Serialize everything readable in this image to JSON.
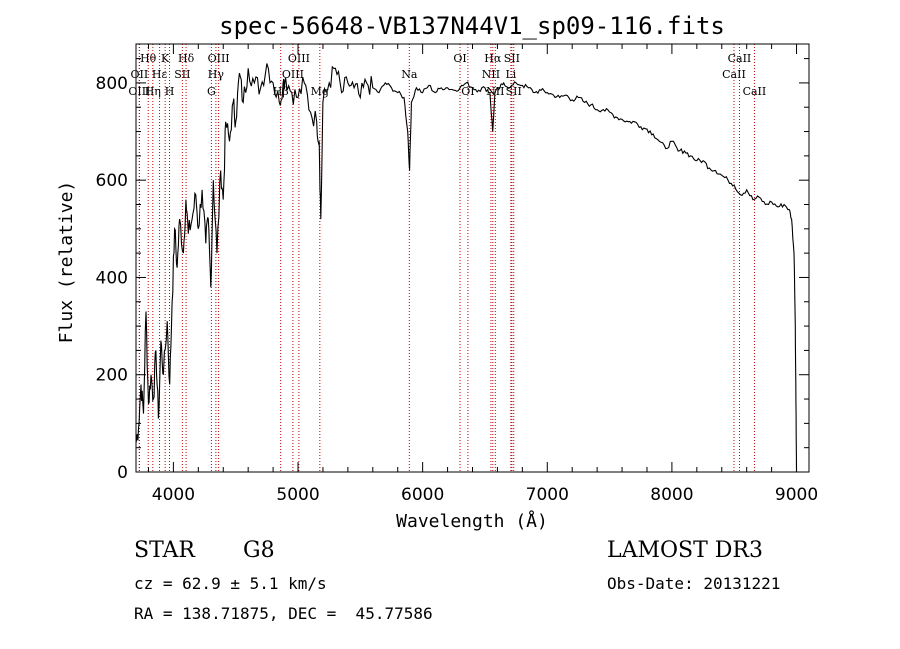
{
  "chart_data": {
    "type": "line",
    "title": "spec-56648-VB137N44V1_sp09-116.fits",
    "xlabel": "Wavelength (Å)",
    "ylabel": "Flux (relative)",
    "xlim": [
      3700,
      9100
    ],
    "ylim": [
      0,
      880
    ],
    "xticks": [
      4000,
      5000,
      6000,
      7000,
      8000,
      9000
    ],
    "yticks": [
      0,
      200,
      400,
      600,
      800
    ],
    "series": [
      {
        "name": "flux",
        "points": [
          [
            3700,
            60
          ],
          [
            3720,
            90
          ],
          [
            3740,
            180
          ],
          [
            3760,
            120
          ],
          [
            3780,
            330
          ],
          [
            3800,
            140
          ],
          [
            3820,
            200
          ],
          [
            3840,
            150
          ],
          [
            3860,
            250
          ],
          [
            3880,
            110
          ],
          [
            3900,
            270
          ],
          [
            3920,
            200
          ],
          [
            3950,
            310
          ],
          [
            3970,
            180
          ],
          [
            3990,
            350
          ],
          [
            4010,
            500
          ],
          [
            4030,
            420
          ],
          [
            4050,
            520
          ],
          [
            4080,
            450
          ],
          [
            4100,
            560
          ],
          [
            4120,
            490
          ],
          [
            4150,
            520
          ],
          [
            4180,
            570
          ],
          [
            4200,
            500
          ],
          [
            4230,
            580
          ],
          [
            4260,
            470
          ],
          [
            4280,
            520
          ],
          [
            4300,
            380
          ],
          [
            4320,
            600
          ],
          [
            4350,
            450
          ],
          [
            4380,
            620
          ],
          [
            4400,
            560
          ],
          [
            4420,
            720
          ],
          [
            4450,
            680
          ],
          [
            4480,
            760
          ],
          [
            4500,
            720
          ],
          [
            4530,
            820
          ],
          [
            4560,
            760
          ],
          [
            4600,
            830
          ],
          [
            4650,
            800
          ],
          [
            4700,
            790
          ],
          [
            4750,
            840
          ],
          [
            4800,
            800
          ],
          [
            4850,
            760
          ],
          [
            4880,
            800
          ],
          [
            4900,
            810
          ],
          [
            4950,
            780
          ],
          [
            5000,
            770
          ],
          [
            5050,
            800
          ],
          [
            5100,
            740
          ],
          [
            5150,
            720
          ],
          [
            5170,
            680
          ],
          [
            5183,
            520
          ],
          [
            5200,
            760
          ],
          [
            5250,
            800
          ],
          [
            5300,
            830
          ],
          [
            5350,
            780
          ],
          [
            5400,
            800
          ],
          [
            5450,
            790
          ],
          [
            5500,
            770
          ],
          [
            5550,
            800
          ],
          [
            5600,
            790
          ],
          [
            5650,
            780
          ],
          [
            5700,
            800
          ],
          [
            5750,
            790
          ],
          [
            5800,
            780
          ],
          [
            5850,
            770
          ],
          [
            5880,
            700
          ],
          [
            5895,
            620
          ],
          [
            5910,
            760
          ],
          [
            5950,
            790
          ],
          [
            6000,
            780
          ],
          [
            6050,
            795
          ],
          [
            6100,
            780
          ],
          [
            6150,
            790
          ],
          [
            6200,
            790
          ],
          [
            6250,
            785
          ],
          [
            6300,
            790
          ],
          [
            6350,
            800
          ],
          [
            6400,
            790
          ],
          [
            6450,
            785
          ],
          [
            6500,
            790
          ],
          [
            6540,
            780
          ],
          [
            6562,
            700
          ],
          [
            6580,
            780
          ],
          [
            6620,
            790
          ],
          [
            6650,
            800
          ],
          [
            6700,
            790
          ],
          [
            6750,
            800
          ],
          [
            6800,
            795
          ],
          [
            6850,
            790
          ],
          [
            6900,
            780
          ],
          [
            6950,
            785
          ],
          [
            7000,
            780
          ],
          [
            7050,
            775
          ],
          [
            7100,
            770
          ],
          [
            7150,
            775
          ],
          [
            7200,
            765
          ],
          [
            7250,
            770
          ],
          [
            7300,
            760
          ],
          [
            7350,
            755
          ],
          [
            7400,
            745
          ],
          [
            7450,
            745
          ],
          [
            7500,
            740
          ],
          [
            7550,
            730
          ],
          [
            7600,
            725
          ],
          [
            7650,
            720
          ],
          [
            7700,
            720
          ],
          [
            7750,
            710
          ],
          [
            7800,
            705
          ],
          [
            7850,
            695
          ],
          [
            7900,
            680
          ],
          [
            7950,
            665
          ],
          [
            8000,
            680
          ],
          [
            8050,
            660
          ],
          [
            8100,
            660
          ],
          [
            8150,
            650
          ],
          [
            8200,
            640
          ],
          [
            8250,
            640
          ],
          [
            8300,
            625
          ],
          [
            8350,
            620
          ],
          [
            8400,
            610
          ],
          [
            8450,
            600
          ],
          [
            8500,
            590
          ],
          [
            8550,
            570
          ],
          [
            8600,
            580
          ],
          [
            8650,
            560
          ],
          [
            8700,
            565
          ],
          [
            8750,
            550
          ],
          [
            8800,
            555
          ],
          [
            8850,
            545
          ],
          [
            8900,
            550
          ],
          [
            8940,
            540
          ],
          [
            8960,
            520
          ],
          [
            8980,
            450
          ],
          [
            8990,
            300
          ],
          [
            8995,
            150
          ],
          [
            9000,
            0
          ]
        ]
      }
    ],
    "lines": [
      {
        "label": "Hθ",
        "wave": 3798,
        "row": 1
      },
      {
        "label": "OII",
        "wave": 3727,
        "row": 2
      },
      {
        "label": "OIII",
        "wave": 3727,
        "row": 3
      },
      {
        "label": "K",
        "wave": 3934,
        "row": 1
      },
      {
        "label": "Hε",
        "wave": 3889,
        "row": 2
      },
      {
        "label": "Hη",
        "wave": 3835,
        "row": 3
      },
      {
        "label": "Hδ",
        "wave": 4102,
        "row": 1
      },
      {
        "label": "SII",
        "wave": 4072,
        "row": 2
      },
      {
        "label": "H",
        "wave": 3969,
        "row": 3
      },
      {
        "label": "OIII",
        "wave": 4363,
        "row": 1
      },
      {
        "label": "Hγ",
        "wave": 4341,
        "row": 2
      },
      {
        "label": "G",
        "wave": 4305,
        "row": 3
      },
      {
        "label": "OIII",
        "wave": 5007,
        "row": 1
      },
      {
        "label": "OIII",
        "wave": 4959,
        "row": 2
      },
      {
        "label": "Hβ",
        "wave": 4861,
        "row": 3
      },
      {
        "label": "Mg",
        "wave": 5175,
        "row": 3
      },
      {
        "label": "Na",
        "wave": 5893,
        "row": 2
      },
      {
        "label": "OI",
        "wave": 6300,
        "row": 1
      },
      {
        "label": "OI",
        "wave": 6363,
        "row": 3
      },
      {
        "label": "Hα",
        "wave": 6563,
        "row": 1
      },
      {
        "label": "SII",
        "wave": 6716,
        "row": 1
      },
      {
        "label": "NII",
        "wave": 6548,
        "row": 2
      },
      {
        "label": "Li",
        "wave": 6708,
        "row": 2
      },
      {
        "label": "NII",
        "wave": 6583,
        "row": 3
      },
      {
        "label": "SII",
        "wave": 6731,
        "row": 3
      },
      {
        "label": "CaII",
        "wave": 8542,
        "row": 1
      },
      {
        "label": "CaII",
        "wave": 8498,
        "row": 2
      },
      {
        "label": "CaII",
        "wave": 8662,
        "row": 3
      }
    ]
  },
  "info": {
    "class_label": "STAR",
    "subclass": "G8",
    "cz": "cz = 62.9 ± 5.1 km/s",
    "coords": "RA = 138.71875, DEC =  45.77586",
    "survey": "LAMOST DR3",
    "obs_date": "Obs-Date: 20131221"
  }
}
